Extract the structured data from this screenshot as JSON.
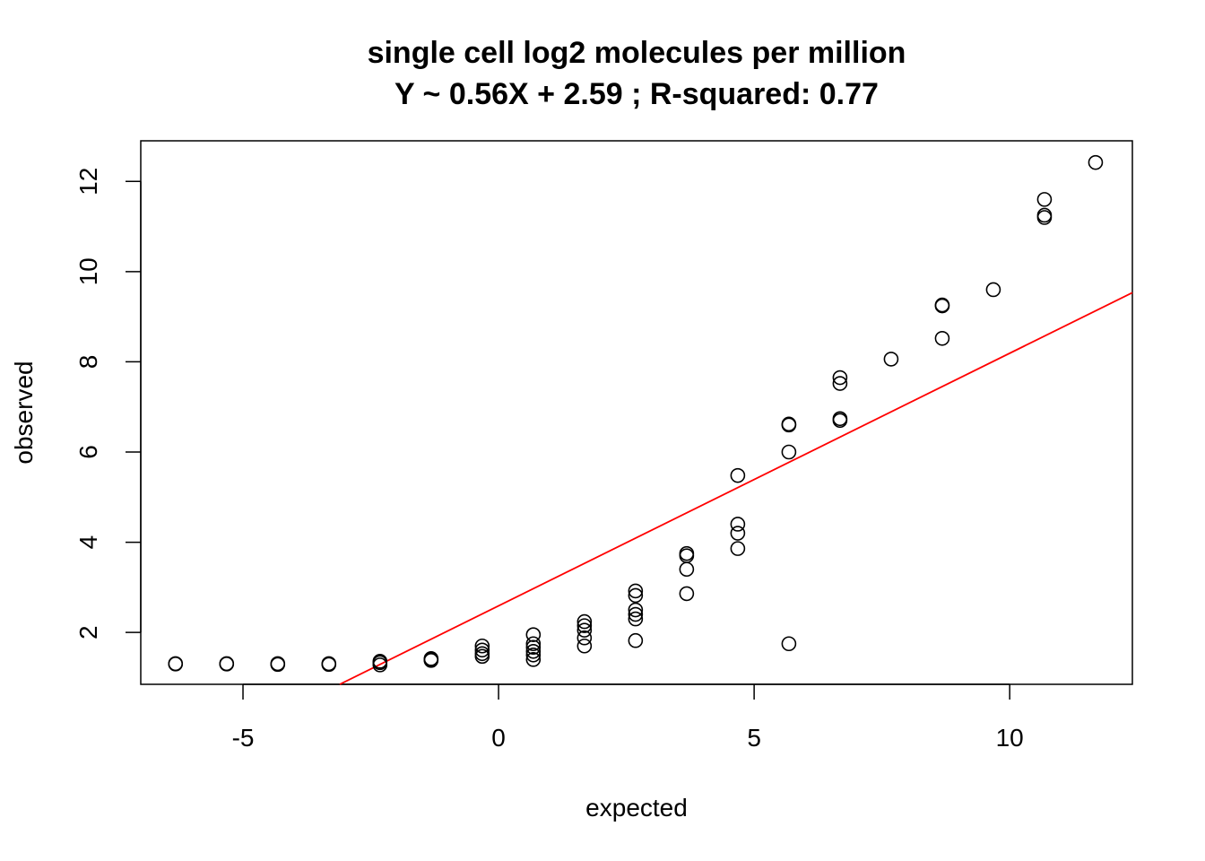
{
  "chart_data": {
    "type": "scatter",
    "title": "single cell log2 molecules per million",
    "subtitle": "Y ~ 0.56X + 2.59 ; R-squared: 0.77",
    "xlabel": "expected",
    "ylabel": "observed",
    "xlim": [
      -7.0,
      12.4
    ],
    "ylim": [
      0.85,
      12.9
    ],
    "x_ticks": [
      -5,
      0,
      5,
      10
    ],
    "y_ticks": [
      2,
      4,
      6,
      8,
      10,
      12
    ],
    "x_tick_labels": [
      "-5",
      "0",
      "5",
      "10"
    ],
    "y_tick_labels": [
      "2",
      "4",
      "6",
      "8",
      "10",
      "12"
    ],
    "grid": false,
    "legend": "none",
    "fit_line": {
      "slope": 0.56,
      "intercept": 2.59,
      "color": "#ff0000"
    },
    "points": [
      {
        "x": -6.32,
        "y": 1.3
      },
      {
        "x": -6.32,
        "y": 1.31
      },
      {
        "x": -5.32,
        "y": 1.3
      },
      {
        "x": -5.32,
        "y": 1.31
      },
      {
        "x": -4.32,
        "y": 1.29
      },
      {
        "x": -4.32,
        "y": 1.31
      },
      {
        "x": -3.32,
        "y": 1.29
      },
      {
        "x": -3.32,
        "y": 1.31
      },
      {
        "x": -2.32,
        "y": 1.28
      },
      {
        "x": -2.32,
        "y": 1.33
      },
      {
        "x": -2.32,
        "y": 1.36
      },
      {
        "x": -1.32,
        "y": 1.38
      },
      {
        "x": -1.32,
        "y": 1.4
      },
      {
        "x": -1.32,
        "y": 1.42
      },
      {
        "x": -0.32,
        "y": 1.47
      },
      {
        "x": -0.32,
        "y": 1.53
      },
      {
        "x": -0.32,
        "y": 1.61
      },
      {
        "x": -0.32,
        "y": 1.7
      },
      {
        "x": 0.68,
        "y": 1.4
      },
      {
        "x": 0.68,
        "y": 1.5
      },
      {
        "x": 0.68,
        "y": 1.58
      },
      {
        "x": 0.68,
        "y": 1.67
      },
      {
        "x": 0.68,
        "y": 1.75
      },
      {
        "x": 0.68,
        "y": 1.95
      },
      {
        "x": 1.68,
        "y": 1.7
      },
      {
        "x": 1.68,
        "y": 1.88
      },
      {
        "x": 1.68,
        "y": 2.05
      },
      {
        "x": 1.68,
        "y": 2.15
      },
      {
        "x": 1.68,
        "y": 2.24
      },
      {
        "x": 2.68,
        "y": 1.82
      },
      {
        "x": 2.68,
        "y": 2.3
      },
      {
        "x": 2.68,
        "y": 2.4
      },
      {
        "x": 2.68,
        "y": 2.5
      },
      {
        "x": 2.68,
        "y": 2.82
      },
      {
        "x": 2.68,
        "y": 2.92
      },
      {
        "x": 3.68,
        "y": 2.86
      },
      {
        "x": 3.68,
        "y": 3.4
      },
      {
        "x": 3.68,
        "y": 3.7
      },
      {
        "x": 3.68,
        "y": 3.75
      },
      {
        "x": 4.68,
        "y": 3.86
      },
      {
        "x": 4.68,
        "y": 4.2
      },
      {
        "x": 4.68,
        "y": 4.4
      },
      {
        "x": 4.68,
        "y": 5.48
      },
      {
        "x": 5.68,
        "y": 1.75
      },
      {
        "x": 5.68,
        "y": 6.0
      },
      {
        "x": 5.68,
        "y": 6.6
      },
      {
        "x": 5.68,
        "y": 6.62
      },
      {
        "x": 6.68,
        "y": 6.7
      },
      {
        "x": 6.68,
        "y": 6.74
      },
      {
        "x": 6.68,
        "y": 7.52
      },
      {
        "x": 6.68,
        "y": 7.65
      },
      {
        "x": 7.68,
        "y": 8.06
      },
      {
        "x": 8.68,
        "y": 8.52
      },
      {
        "x": 8.68,
        "y": 9.24
      },
      {
        "x": 8.68,
        "y": 9.26
      },
      {
        "x": 9.68,
        "y": 9.6
      },
      {
        "x": 10.68,
        "y": 11.2
      },
      {
        "x": 10.68,
        "y": 11.25
      },
      {
        "x": 10.68,
        "y": 11.6
      },
      {
        "x": 11.68,
        "y": 12.42
      }
    ]
  }
}
